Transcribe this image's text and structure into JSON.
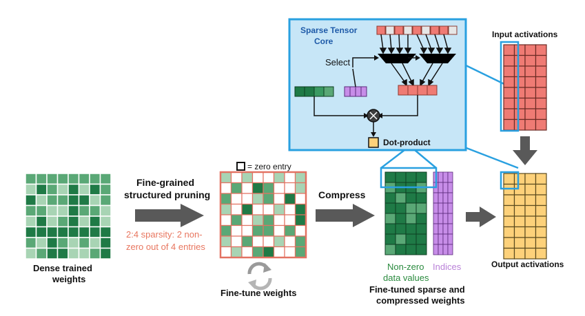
{
  "labels": {
    "sparse_tensor_core_line1": "Sparse Tensor",
    "sparse_tensor_core_line2": "Core",
    "select": "Select",
    "dot_product": "Dot-product",
    "input_activations": "Input activations",
    "output_activations": "Output activations",
    "dense_line1": "Dense trained",
    "dense_line2": "weights",
    "pruning_line1": "Fine-grained",
    "pruning_line2": "structured pruning",
    "sparsity_line1": "2:4 sparsity: 2 non-",
    "sparsity_line2": "zero out of 4 entries",
    "zero_entry": "= zero entry",
    "compress": "Compress",
    "fine_tune": "Fine-tune weights",
    "nonzero_line1": "Non-zero",
    "nonzero_line2": "data values",
    "indices": "Indices",
    "compressed_line1": "Fine-tuned sparse and",
    "compressed_line2": "compressed weights"
  },
  "colors": {
    "green_dark": "#1f7a46",
    "green_mid": "#5aa876",
    "green_light": "#a8d4b4",
    "salmon": "#ef7b74",
    "salmon_border": "#e37262",
    "purple": "#c78de8",
    "yellow": "#fdd17a",
    "blue_frame": "#29a0e0",
    "panel_fill": "#c7e6f7",
    "arrow_gray": "#595959",
    "cell_gray": "#d9d9d9"
  },
  "icons": {
    "multiply": "circled-x-icon",
    "refresh": "circular-arrows-icon",
    "mux": "multiplexer-trapezoid-icon"
  }
}
